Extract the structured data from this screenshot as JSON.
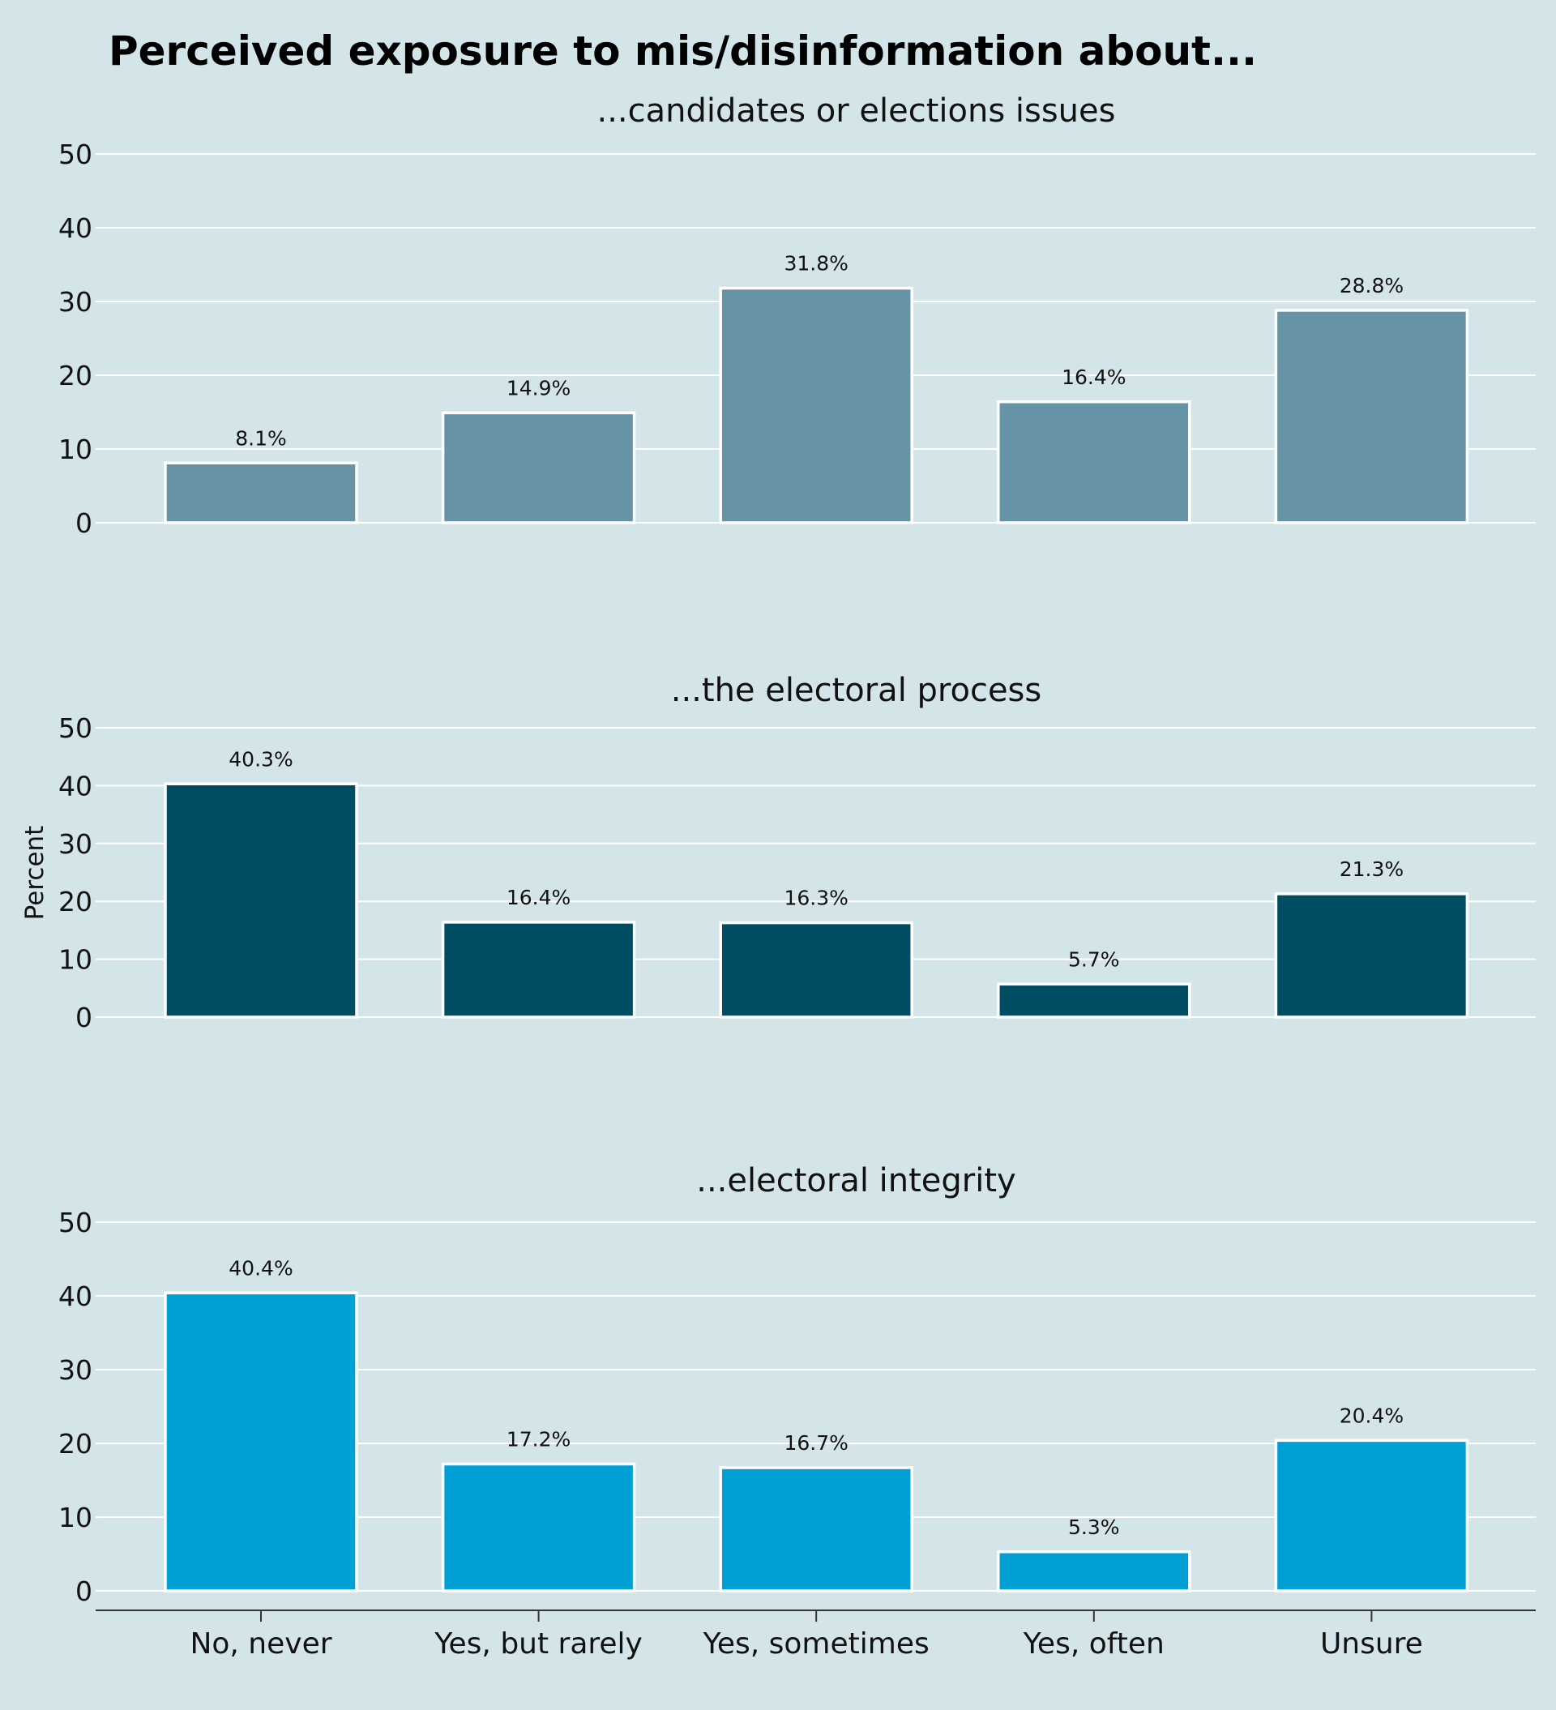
{
  "chart_data": {
    "type": "bar",
    "title": "Perceived exposure to mis/disinformation about...",
    "ylabel": "Percent",
    "xlabel": "",
    "categories": [
      "No, never",
      "Yes, but rarely",
      "Yes, sometimes",
      "Yes, often",
      "Unsure"
    ],
    "yticks": [
      0,
      10,
      20,
      30,
      40,
      50
    ],
    "ylim": [
      0,
      50
    ],
    "grid": true,
    "label_suffix": "%",
    "panels": [
      {
        "subtitle": "...candidates or elections issues",
        "color": "#6793a6",
        "values": [
          8.1,
          14.9,
          31.8,
          16.4,
          28.8
        ]
      },
      {
        "subtitle": "...the electoral process",
        "color": "#004c62",
        "values": [
          40.3,
          16.4,
          16.3,
          5.7,
          21.3
        ]
      },
      {
        "subtitle": "...electoral integrity",
        "color": "#00a0d6",
        "values": [
          40.4,
          17.2,
          16.7,
          5.3,
          20.4
        ]
      }
    ]
  }
}
